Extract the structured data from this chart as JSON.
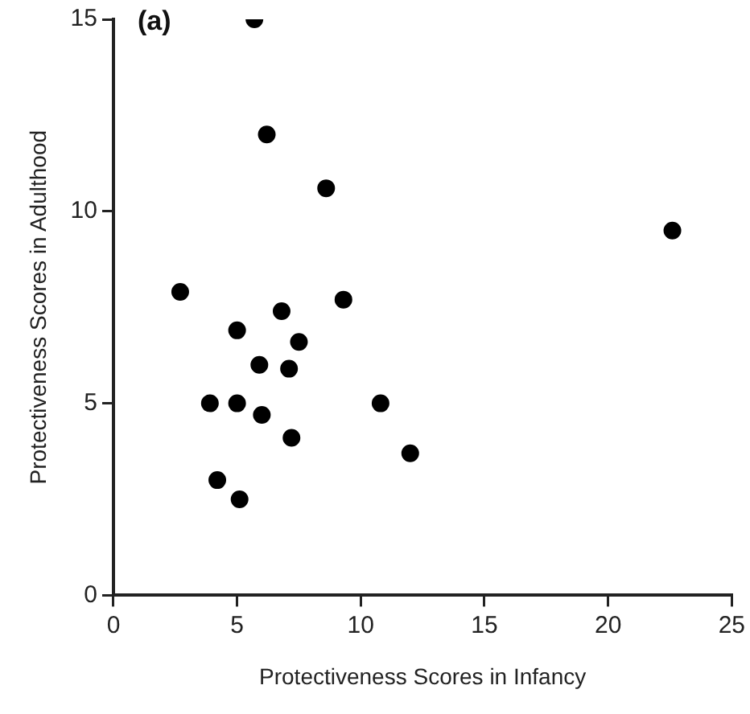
{
  "chart_data": {
    "type": "scatter",
    "xlabel": "Protectiveness Scores in Infancy",
    "ylabel": "Protectiveness Scores in Adulthood",
    "annotations": [
      "(a)"
    ],
    "x": [
      5.7,
      6.2,
      8.6,
      22.6,
      2.7,
      9.3,
      6.8,
      5.0,
      7.5,
      5.9,
      7.1,
      3.9,
      5.0,
      6.0,
      10.8,
      7.2,
      12.0,
      4.2,
      5.1
    ],
    "series": [
      {
        "color": "#000000",
        "values": [
          15.0,
          12.0,
          10.6,
          9.5,
          7.9,
          7.7,
          7.4,
          6.9,
          6.6,
          6.0,
          5.9,
          5.0,
          5.0,
          4.7,
          5.0,
          4.1,
          3.7,
          3.0,
          2.5
        ]
      }
    ],
    "xlim": [
      0,
      25
    ],
    "ylim": [
      0,
      15
    ],
    "xticks": [
      0,
      5,
      10,
      15,
      20,
      25
    ],
    "yticks": [
      0,
      5,
      10,
      15
    ],
    "grid": false,
    "legend": false,
    "marker": "circle"
  }
}
